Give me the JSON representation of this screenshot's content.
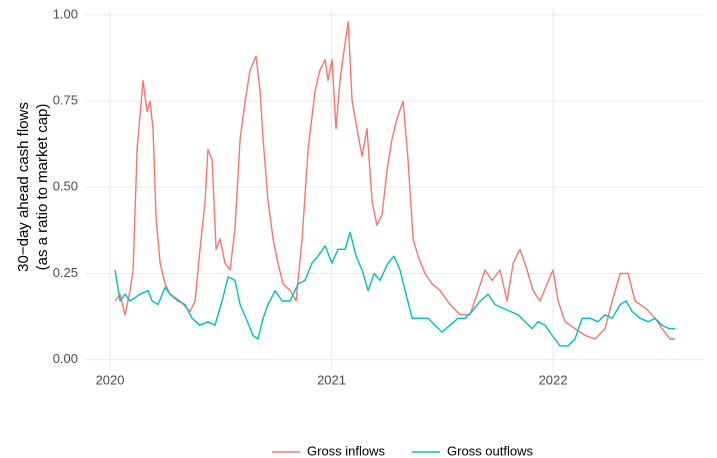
{
  "chart_data": {
    "type": "line",
    "ylabel": [
      "30−day ahead cash flows",
      "(as a ratio to market cap)"
    ],
    "xlim": [
      2019.887,
      2022.686
    ],
    "xticks": [
      2020,
      2021,
      2022
    ],
    "ylim": [
      -0.03,
      1.02
    ],
    "yticks": [
      {
        "value": 0,
        "label": "0.00"
      },
      {
        "value": 0.25,
        "label": "0.25"
      },
      {
        "value": 0.5,
        "label": "0.50"
      },
      {
        "value": 0.75,
        "label": "0.75"
      },
      {
        "value": 1,
        "label": "1.00"
      }
    ],
    "grid": true,
    "legend": "bottom",
    "series": [
      {
        "name": "Gross inflows",
        "color": "#f8766d",
        "x": [
          2020.023,
          2020.045,
          2020.068,
          2020.09,
          2020.104,
          2020.122,
          2020.149,
          2020.167,
          2020.181,
          2020.194,
          2020.208,
          2020.226,
          2020.248,
          2020.271,
          2020.316,
          2020.361,
          2020.384,
          2020.406,
          2020.429,
          2020.442,
          2020.461,
          2020.479,
          2020.497,
          2020.519,
          2020.542,
          2020.564,
          2020.587,
          2020.61,
          2020.632,
          2020.659,
          2020.677,
          2020.691,
          2020.713,
          2020.736,
          2020.758,
          2020.781,
          2020.813,
          2020.84,
          2020.867,
          2020.894,
          2020.926,
          2020.948,
          2020.971,
          2020.984,
          2021.002,
          2021.02,
          2021.038,
          2021.057,
          2021.075,
          2021.093,
          2021.115,
          2021.138,
          2021.16,
          2021.183,
          2021.205,
          2021.228,
          2021.251,
          2021.273,
          2021.296,
          2021.323,
          2021.345,
          2021.368,
          2021.391,
          2021.422,
          2021.454,
          2021.49,
          2021.535,
          2021.58,
          2021.625,
          2021.662,
          2021.693,
          2021.725,
          2021.761,
          2021.792,
          2021.82,
          2021.851,
          2021.883,
          2021.91,
          2021.941,
          2021.973,
          2022.0,
          2022.023,
          2022.054,
          2022.099,
          2022.145,
          2022.19,
          2022.235,
          2022.267,
          2022.303,
          2022.339,
          2022.37,
          2022.416,
          2022.461,
          2022.492,
          2022.528,
          2022.551
        ],
        "values": [
          0.17,
          0.19,
          0.13,
          0.2,
          0.26,
          0.61,
          0.81,
          0.72,
          0.75,
          0.67,
          0.41,
          0.28,
          0.22,
          0.19,
          0.17,
          0.14,
          0.17,
          0.32,
          0.46,
          0.61,
          0.58,
          0.32,
          0.35,
          0.28,
          0.26,
          0.38,
          0.64,
          0.75,
          0.84,
          0.88,
          0.78,
          0.64,
          0.46,
          0.35,
          0.28,
          0.22,
          0.2,
          0.17,
          0.35,
          0.61,
          0.78,
          0.84,
          0.87,
          0.81,
          0.87,
          0.67,
          0.81,
          0.9,
          0.98,
          0.75,
          0.67,
          0.59,
          0.67,
          0.46,
          0.39,
          0.42,
          0.55,
          0.64,
          0.7,
          0.75,
          0.58,
          0.35,
          0.3,
          0.25,
          0.22,
          0.2,
          0.16,
          0.13,
          0.13,
          0.2,
          0.26,
          0.23,
          0.26,
          0.17,
          0.28,
          0.32,
          0.26,
          0.2,
          0.17,
          0.22,
          0.26,
          0.17,
          0.11,
          0.09,
          0.07,
          0.06,
          0.09,
          0.17,
          0.25,
          0.25,
          0.17,
          0.15,
          0.12,
          0.09,
          0.06,
          0.06
        ]
      },
      {
        "name": "Gross outflows",
        "color": "#00bfc4",
        "x": [
          2020.023,
          2020.045,
          2020.068,
          2020.09,
          2020.113,
          2020.135,
          2020.172,
          2020.19,
          2020.217,
          2020.248,
          2020.271,
          2020.307,
          2020.339,
          2020.37,
          2020.406,
          2020.442,
          2020.474,
          2020.506,
          2020.533,
          2020.564,
          2020.587,
          2020.614,
          2020.646,
          2020.668,
          2020.691,
          2020.713,
          2020.745,
          2020.777,
          2020.813,
          2020.849,
          2020.88,
          2020.912,
          2020.939,
          2020.971,
          2021.002,
          2021.029,
          2021.061,
          2021.084,
          2021.111,
          2021.138,
          2021.165,
          2021.192,
          2021.219,
          2021.255,
          2021.282,
          2021.309,
          2021.336,
          2021.364,
          2021.4,
          2021.436,
          2021.467,
          2021.499,
          2021.535,
          2021.571,
          2021.603,
          2021.634,
          2021.671,
          2021.707,
          2021.738,
          2021.77,
          2021.806,
          2021.842,
          2021.874,
          2021.905,
          2021.932,
          2021.964,
          2021.996,
          2022.032,
          2022.068,
          2022.099,
          2022.131,
          2022.167,
          2022.203,
          2022.235,
          2022.267,
          2022.303,
          2022.33,
          2022.357,
          2022.393,
          2022.429,
          2022.461,
          2022.492,
          2022.523,
          2022.551
        ],
        "values": [
          0.26,
          0.17,
          0.19,
          0.17,
          0.18,
          0.19,
          0.2,
          0.17,
          0.16,
          0.21,
          0.19,
          0.17,
          0.16,
          0.12,
          0.1,
          0.11,
          0.1,
          0.17,
          0.24,
          0.23,
          0.16,
          0.12,
          0.07,
          0.06,
          0.12,
          0.16,
          0.2,
          0.17,
          0.17,
          0.22,
          0.23,
          0.28,
          0.3,
          0.33,
          0.28,
          0.32,
          0.32,
          0.37,
          0.3,
          0.26,
          0.2,
          0.25,
          0.23,
          0.28,
          0.3,
          0.26,
          0.19,
          0.12,
          0.12,
          0.12,
          0.1,
          0.08,
          0.1,
          0.12,
          0.12,
          0.14,
          0.17,
          0.19,
          0.16,
          0.15,
          0.14,
          0.13,
          0.11,
          0.09,
          0.11,
          0.1,
          0.07,
          0.04,
          0.04,
          0.06,
          0.12,
          0.12,
          0.11,
          0.13,
          0.12,
          0.16,
          0.17,
          0.14,
          0.12,
          0.11,
          0.12,
          0.1,
          0.09,
          0.09
        ]
      }
    ]
  }
}
